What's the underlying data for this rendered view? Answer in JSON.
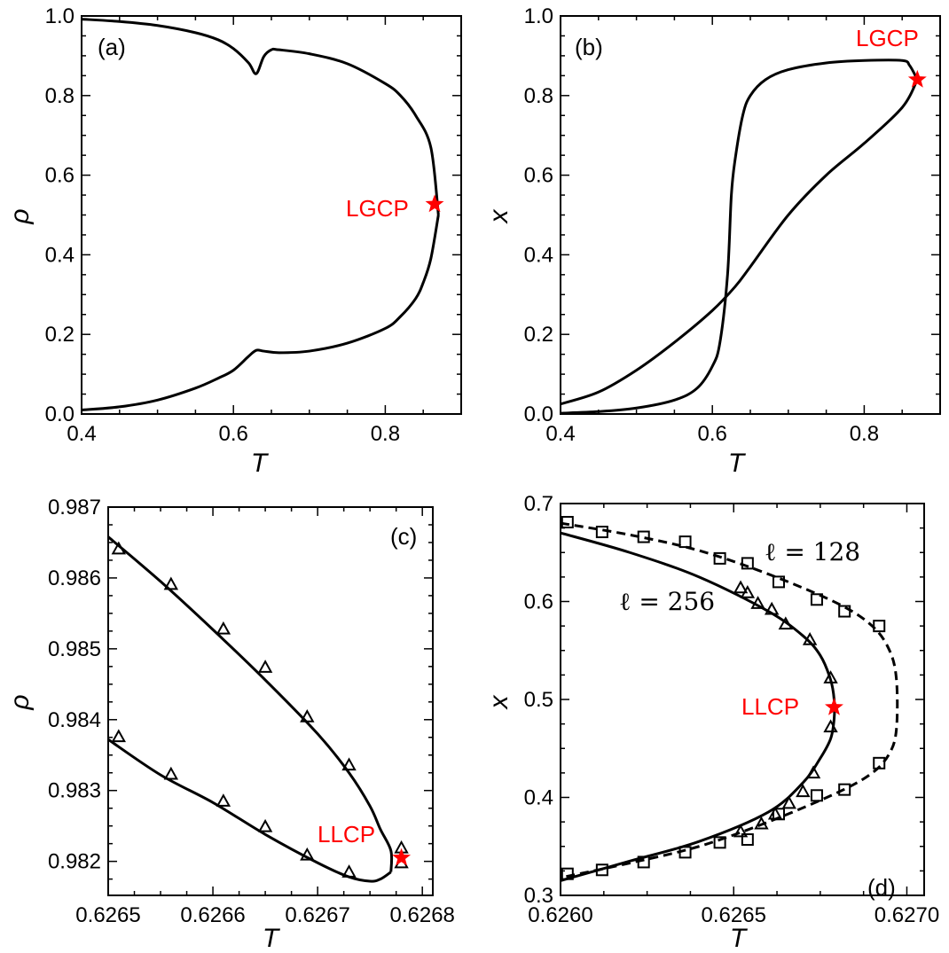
{
  "chart_data": [
    {
      "id": "a",
      "type": "line",
      "panel_label": "(a)",
      "xlabel": "T",
      "ylabel": "ρ",
      "xlim": [
        0.4,
        0.9
      ],
      "ylim": [
        0.0,
        1.0
      ],
      "xticks": [
        "0.4",
        "0.6",
        "0.8"
      ],
      "yticks": [
        "0.0",
        "0.2",
        "0.4",
        "0.6",
        "0.8",
        "1.0"
      ],
      "series": [
        {
          "style": "solid",
          "x": [
            0.4,
            0.45,
            0.5,
            0.55,
            0.58,
            0.6,
            0.62,
            0.63,
            0.64,
            0.65,
            0.66,
            0.7,
            0.75,
            0.8,
            0.82,
            0.84,
            0.86,
            0.87
          ],
          "y": [
            0.992,
            0.986,
            0.976,
            0.958,
            0.94,
            0.918,
            0.882,
            0.855,
            0.898,
            0.915,
            0.915,
            0.905,
            0.88,
            0.83,
            0.8,
            0.75,
            0.67,
            0.5
          ]
        },
        {
          "style": "solid",
          "x": [
            0.4,
            0.45,
            0.5,
            0.55,
            0.58,
            0.6,
            0.62,
            0.63,
            0.64,
            0.66,
            0.7,
            0.75,
            0.8,
            0.82,
            0.84,
            0.85,
            0.86,
            0.87
          ],
          "y": [
            0.01,
            0.018,
            0.035,
            0.065,
            0.09,
            0.11,
            0.145,
            0.16,
            0.158,
            0.154,
            0.158,
            0.178,
            0.215,
            0.245,
            0.29,
            0.33,
            0.39,
            0.5
          ]
        }
      ],
      "critical_point": {
        "label": "LGCP",
        "x": 0.865,
        "y": 0.527
      }
    },
    {
      "id": "b",
      "type": "line",
      "panel_label": "(b)",
      "xlabel": "T",
      "ylabel": "x",
      "xlim": [
        0.4,
        0.9
      ],
      "ylim": [
        0.0,
        1.0
      ],
      "xticks": [
        "0.4",
        "0.6",
        "0.8"
      ],
      "yticks": [
        "0.0",
        "0.2",
        "0.4",
        "0.6",
        "0.8",
        "1.0"
      ],
      "series": [
        {
          "style": "solid",
          "x": [
            0.4,
            0.45,
            0.5,
            0.55,
            0.58,
            0.6,
            0.61,
            0.62,
            0.625,
            0.63,
            0.64,
            0.65,
            0.67,
            0.7,
            0.75,
            0.8,
            0.85,
            0.86,
            0.87
          ],
          "y": [
            0.002,
            0.006,
            0.015,
            0.035,
            0.065,
            0.12,
            0.18,
            0.35,
            0.55,
            0.64,
            0.75,
            0.8,
            0.84,
            0.865,
            0.882,
            0.888,
            0.888,
            0.875,
            0.84
          ]
        },
        {
          "style": "solid",
          "x": [
            0.4,
            0.45,
            0.5,
            0.55,
            0.6,
            0.63,
            0.65,
            0.7,
            0.75,
            0.8,
            0.85,
            0.87
          ],
          "y": [
            0.025,
            0.055,
            0.11,
            0.18,
            0.26,
            0.32,
            0.37,
            0.5,
            0.6,
            0.68,
            0.77,
            0.84
          ]
        }
      ],
      "critical_point": {
        "label": "LGCP",
        "x": 0.87,
        "y": 0.84
      }
    },
    {
      "id": "c",
      "type": "line",
      "panel_label": "(c)",
      "xlabel": "T",
      "ylabel": "ρ",
      "xlim": [
        0.6265,
        0.62681
      ],
      "ylim": [
        0.98152,
        0.987
      ],
      "xticks": [
        "0.6265",
        "0.6266",
        "0.6267",
        "0.6268"
      ],
      "yticks": [
        "0.982",
        "0.983",
        "0.984",
        "0.985",
        "0.986",
        "0.987"
      ],
      "series": [
        {
          "style": "solid",
          "x": [
            0.6265,
            0.62655,
            0.6266,
            0.62665,
            0.6267,
            0.62673,
            0.62675,
            0.62676,
            0.62677,
            0.62677
          ],
          "y": [
            0.98658,
            0.98595,
            0.98527,
            0.98456,
            0.9838,
            0.98325,
            0.98278,
            0.98245,
            0.98215,
            0.98185
          ]
        },
        {
          "style": "solid",
          "x": [
            0.6265,
            0.62655,
            0.6266,
            0.62665,
            0.6267,
            0.62673,
            0.62675,
            0.62676,
            0.62677
          ],
          "y": [
            0.98372,
            0.98322,
            0.98283,
            0.98238,
            0.98198,
            0.98178,
            0.98172,
            0.98175,
            0.98185
          ]
        }
      ],
      "markers": {
        "shape": "triangle",
        "x": [
          0.62651,
          0.62656,
          0.62661,
          0.62665,
          0.62669,
          0.62673,
          0.62678,
          0.62651,
          0.62656,
          0.62661,
          0.62665,
          0.62669,
          0.62673,
          0.62678
        ],
        "y": [
          0.98641,
          0.98591,
          0.98528,
          0.98474,
          0.98404,
          0.98336,
          0.98219,
          0.98376,
          0.98323,
          0.98285,
          0.98249,
          0.98209,
          0.98185,
          0.98198
        ]
      },
      "critical_point": {
        "label": "LLCP",
        "x": 0.62678,
        "y": 0.98205
      }
    },
    {
      "id": "d",
      "type": "line",
      "panel_label": "(d)",
      "xlabel": "T",
      "ylabel": "x",
      "xlim": [
        0.626,
        0.62705
      ],
      "ylim": [
        0.3,
        0.7
      ],
      "xticks": [
        "0.6260",
        "0.6265",
        "0.6270"
      ],
      "yticks": [
        "0.3",
        "0.4",
        "0.5",
        "0.6",
        "0.7"
      ],
      "series": [
        {
          "name": "ℓ = 256",
          "style": "solid",
          "x": [
            0.626,
            0.6262,
            0.6264,
            0.6266,
            0.6267,
            0.62675,
            0.62678,
            0.62679,
            0.62679,
            0.62678,
            0.62675,
            0.6267,
            0.6266,
            0.6264,
            0.6262,
            0.626
          ],
          "y": [
            0.67,
            0.65,
            0.625,
            0.59,
            0.565,
            0.545,
            0.52,
            0.5,
            0.48,
            0.46,
            0.44,
            0.415,
            0.385,
            0.355,
            0.335,
            0.315
          ]
        },
        {
          "name": "ℓ = 128",
          "style": "dashed",
          "x": [
            0.626,
            0.6262,
            0.6264,
            0.6266,
            0.6268,
            0.6269,
            0.62695,
            0.62697,
            0.62697,
            0.62695,
            0.6269,
            0.6268,
            0.6266,
            0.6264,
            0.6262,
            0.626
          ],
          "y": [
            0.68,
            0.668,
            0.652,
            0.628,
            0.598,
            0.575,
            0.55,
            0.52,
            0.47,
            0.445,
            0.425,
            0.405,
            0.375,
            0.35,
            0.333,
            0.318
          ]
        }
      ],
      "markers_256": {
        "shape": "triangle",
        "x": [
          0.62652,
          0.62654,
          0.62657,
          0.62661,
          0.62665,
          0.62672,
          0.62678,
          0.62678,
          0.62673,
          0.6267,
          0.62666,
          0.62662,
          0.62658,
          0.62652
        ],
        "y": [
          0.614,
          0.609,
          0.598,
          0.592,
          0.577,
          0.561,
          0.522,
          0.472,
          0.425,
          0.406,
          0.394,
          0.383,
          0.373,
          0.365
        ]
      },
      "markers_128": {
        "shape": "square",
        "x": [
          0.62602,
          0.62612,
          0.62624,
          0.62636,
          0.62646,
          0.62654,
          0.62663,
          0.62674,
          0.62682,
          0.62692,
          0.62692,
          0.62682,
          0.62674,
          0.62663,
          0.62654,
          0.62646,
          0.62636,
          0.62624,
          0.62612,
          0.62602
        ],
        "y": [
          0.681,
          0.671,
          0.666,
          0.661,
          0.644,
          0.639,
          0.62,
          0.602,
          0.59,
          0.575,
          0.435,
          0.408,
          0.402,
          0.383,
          0.357,
          0.354,
          0.344,
          0.334,
          0.326,
          0.322
        ]
      },
      "critical_point": {
        "label": "LLCP",
        "x": 0.62679,
        "y": 0.492
      }
    }
  ]
}
